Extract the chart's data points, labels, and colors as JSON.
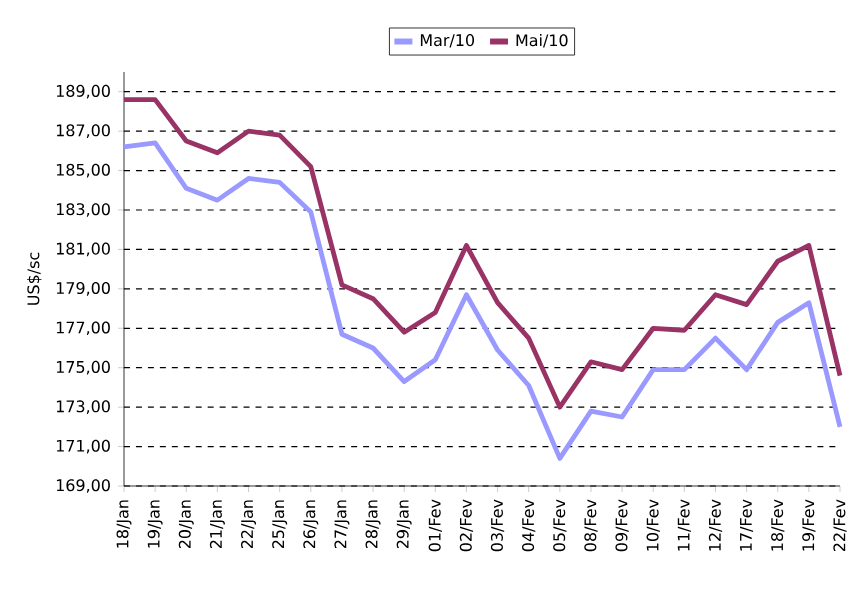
{
  "chart_data": {
    "type": "line",
    "ylabel": "US$/sc",
    "categories": [
      "18/Jan",
      "19/Jan",
      "20/Jan",
      "21/Jan",
      "22/Jan",
      "25/Jan",
      "26/Jan",
      "27/Jan",
      "28/Jan",
      "29/Jan",
      "01/Fev",
      "02/Fev",
      "03/Fev",
      "04/Fev",
      "05/Fev",
      "08/Fev",
      "09/Fev",
      "10/Fev",
      "11/Fev",
      "12/Fev",
      "17/Fev",
      "18/Fev",
      "19/Fev",
      "22/Fev"
    ],
    "series": [
      {
        "name": "Mar/10",
        "color": "#9999ff",
        "values": [
          186.2,
          186.4,
          184.1,
          183.5,
          184.6,
          184.4,
          182.9,
          176.7,
          176.0,
          174.3,
          175.4,
          178.7,
          175.9,
          174.1,
          170.4,
          172.8,
          172.5,
          174.9,
          174.9,
          176.5,
          174.9,
          177.3,
          178.3,
          172.0
        ]
      },
      {
        "name": "Mai/10",
        "color": "#993366",
        "values": [
          188.6,
          188.6,
          186.5,
          185.9,
          187.0,
          186.8,
          185.2,
          179.2,
          178.5,
          176.8,
          177.8,
          181.2,
          178.3,
          176.5,
          173.0,
          175.3,
          174.9,
          177.0,
          176.9,
          178.7,
          178.2,
          180.4,
          181.2,
          174.6
        ]
      }
    ],
    "ylim": [
      169,
      190
    ],
    "yticks": [
      {
        "value": 169,
        "label": "169,00"
      },
      {
        "value": 171,
        "label": "171,00"
      },
      {
        "value": 173,
        "label": "173,00"
      },
      {
        "value": 175,
        "label": "175,00"
      },
      {
        "value": 177,
        "label": "177,00"
      },
      {
        "value": 179,
        "label": "179,00"
      },
      {
        "value": 181,
        "label": "181,00"
      },
      {
        "value": 183,
        "label": "183,00"
      },
      {
        "value": 185,
        "label": "185,00"
      },
      {
        "value": 187,
        "label": "187,00"
      },
      {
        "value": 189,
        "label": "189,00"
      }
    ],
    "grid": "y",
    "legend": "top",
    "marker": "none",
    "line_style": "solid"
  }
}
